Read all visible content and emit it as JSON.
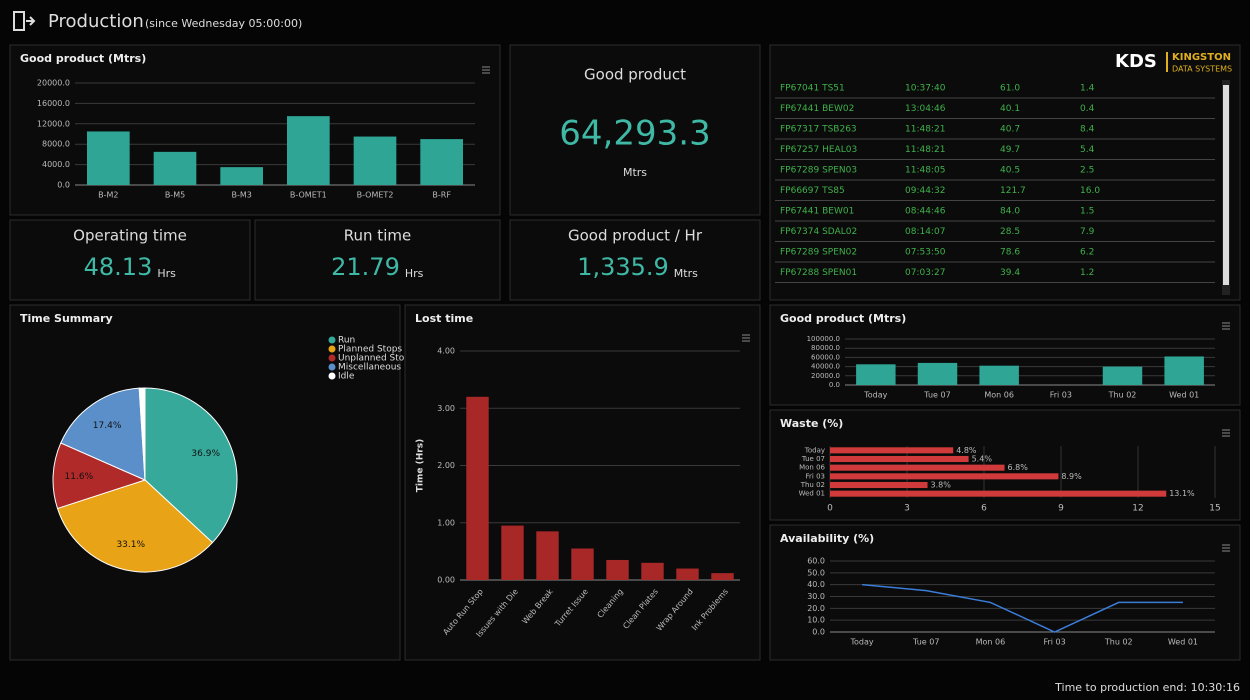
{
  "header": {
    "title": "Production",
    "subtitle": "(since Wednesday 05:00:00)"
  },
  "logo": {
    "mark": "KDS",
    "name": "KINGSTON",
    "tagline": "DATA SYSTEMS"
  },
  "kpis": [
    {
      "title": "Good product",
      "value": "64,293.3",
      "unit": "Mtrs"
    },
    {
      "title": "Operating time",
      "value": "48.13",
      "unit": "Hrs"
    },
    {
      "title": "Run time",
      "value": "21.79",
      "unit": "Hrs"
    },
    {
      "title": "Good product / Hr",
      "value": "1,335.9",
      "unit": "Mtrs"
    }
  ],
  "table": {
    "rows": [
      [
        "FP67041 TS51",
        "10:37:40",
        "61.0",
        "1.4"
      ],
      [
        "FP67441 BEW02",
        "13:04:46",
        "40.1",
        "0.4"
      ],
      [
        "FP67317 TSB263",
        "11:48:21",
        "40.7",
        "8.4"
      ],
      [
        "FP67257 HEAL03",
        "11:48:21",
        "49.7",
        "5.4"
      ],
      [
        "FP67289 SPEN03",
        "11:48:05",
        "40.5",
        "2.5"
      ],
      [
        "FP66697 TS85",
        "09:44:32",
        "121.7",
        "16.0"
      ],
      [
        "FP67441 BEW01",
        "08:44:46",
        "84.0",
        "1.5"
      ],
      [
        "FP67374 SDAL02",
        "08:14:07",
        "28.5",
        "7.9"
      ],
      [
        "FP67289 SPEN02",
        "07:53:50",
        "78.6",
        "6.2"
      ],
      [
        "FP67288 SPEN01",
        "07:03:27",
        "39.4",
        "1.2"
      ]
    ]
  },
  "footer": "Time to production end: 10:30:16",
  "chart_data": [
    {
      "type": "bar",
      "title": "Good product (Mtrs)",
      "color": "#2fa596",
      "categories": [
        "B-M2",
        "B-M5",
        "B-M3",
        "B-OMET1",
        "B-OMET2",
        "B-RF"
      ],
      "values": [
        10500,
        6500,
        3500,
        13500,
        9500,
        9000
      ],
      "ylim": [
        0,
        20000
      ],
      "yticks": [
        {
          "value": 0,
          "label": "0.0"
        },
        {
          "value": 4000,
          "label": "4000.0"
        },
        {
          "value": 8000,
          "label": "8000.0"
        },
        {
          "value": 12000,
          "label": "12000.0"
        },
        {
          "value": 16000,
          "label": "16000.0"
        },
        {
          "value": 20000,
          "label": "20000.0"
        }
      ],
      "grid": true
    },
    {
      "type": "pie",
      "title": "Time Summary",
      "categories": [
        "Run",
        "Planned Stops",
        "Unplanned Stops",
        "Miscellaneous",
        "Idle"
      ],
      "values": [
        36.9,
        33.1,
        11.6,
        17.4,
        1.0
      ],
      "value_labels": [
        "36.9%",
        "33.1%",
        "11.6%",
        "17.4%",
        null
      ],
      "colors": [
        "#36a99b",
        "#e8a317",
        "#b02a2a",
        "#5b8fc9",
        "#ffffff"
      ]
    },
    {
      "type": "bar",
      "title": "Lost time",
      "ylabel": "Time (Hrs)",
      "color": "#a82828",
      "categories": [
        "Auto Run Stop",
        "Issues with Die",
        "Web Break",
        "Turret Issue",
        "Cleaning",
        "Clean Plates",
        "Wrap Around",
        "Ink Problems"
      ],
      "values": [
        3.2,
        0.95,
        0.85,
        0.55,
        0.35,
        0.3,
        0.2,
        0.12
      ],
      "ylim": [
        0,
        4
      ],
      "yticks": [
        {
          "value": 0,
          "label": "0.00"
        },
        {
          "value": 1,
          "label": "1.00"
        },
        {
          "value": 2,
          "label": "2.00"
        },
        {
          "value": 3,
          "label": "3.00"
        },
        {
          "value": 4,
          "label": "4.00"
        }
      ],
      "grid": true
    },
    {
      "type": "bar",
      "title": "Good product (Mtrs)",
      "color": "#2fa596",
      "categories": [
        "Today",
        "Tue 07",
        "Mon 06",
        "Fri 03",
        "Thu 02",
        "Wed 01"
      ],
      "values": [
        45000,
        48000,
        42000,
        0,
        40000,
        62000
      ],
      "ylim": [
        0,
        100000
      ],
      "yticks": [
        {
          "value": 0,
          "label": "0.0"
        },
        {
          "value": 20000,
          "label": "20000.0"
        },
        {
          "value": 40000,
          "label": "40000.0"
        },
        {
          "value": 60000,
          "label": "60000.0"
        },
        {
          "value": 80000,
          "label": "80000.0"
        },
        {
          "value": 100000,
          "label": "100000.0"
        }
      ],
      "grid": true
    },
    {
      "type": "barh",
      "title": "Waste (%)",
      "color": "#d03a3a",
      "categories": [
        "Today",
        "Tue 07",
        "Mon 06",
        "Fri 03",
        "Thu 02",
        "Wed 01"
      ],
      "values": [
        4.8,
        5.4,
        6.8,
        8.9,
        3.8,
        13.1
      ],
      "value_labels": [
        "4.8%",
        "5.4%",
        "6.8%",
        "8.9%",
        "3.8%",
        "13.1%"
      ],
      "xlim": [
        0,
        15
      ],
      "xticks": [
        0,
        3,
        6,
        9,
        12,
        15
      ],
      "grid": true
    },
    {
      "type": "line",
      "title": "Availability (%)",
      "color": "#3b7dd8",
      "categories": [
        "Today",
        "Tue 07",
        "Mon 06",
        "Fri 03",
        "Thu 02",
        "Wed 01"
      ],
      "values": [
        40,
        35,
        25,
        0,
        25,
        25
      ],
      "ylim": [
        0,
        60
      ],
      "yticks": [
        {
          "value": 0,
          "label": "0.0"
        },
        {
          "value": 10,
          "label": "10.0"
        },
        {
          "value": 20,
          "label": "20.0"
        },
        {
          "value": 30,
          "label": "30.0"
        },
        {
          "value": 40,
          "label": "40.0"
        },
        {
          "value": 50,
          "label": "50.0"
        },
        {
          "value": 60,
          "label": "60.0"
        }
      ],
      "grid": true
    }
  ]
}
